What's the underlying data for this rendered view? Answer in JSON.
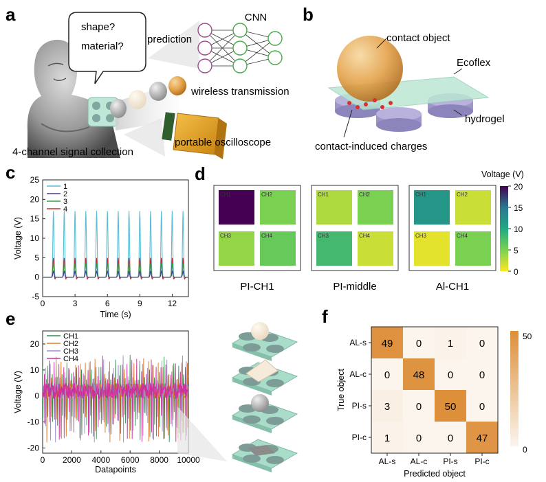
{
  "panels": {
    "a": {
      "label": "a",
      "bubble": [
        "shape?",
        "material?"
      ],
      "prediction": "prediction",
      "cnn": "CNN",
      "wireless": "wireless transmission",
      "collection": "4-channel signal collection",
      "oscilloscope": "portable oscilloscope"
    },
    "b": {
      "label": "b",
      "contact_object": "contact object",
      "ecoflex": "Ecoflex",
      "hydrogel": "hydrogel",
      "charges": "contact-induced charges"
    },
    "c": {
      "label": "c"
    },
    "d": {
      "label": "d",
      "colorbar_title": "Voltage (V)",
      "colorbar_ticks": [
        "20",
        "15",
        "10",
        "5",
        "0"
      ],
      "channel_labels": [
        "CH1",
        "CH2",
        "CH3",
        "CH4"
      ],
      "groups": [
        {
          "name": "PI-CH1",
          "voltages": [
            20,
            5,
            4,
            6
          ]
        },
        {
          "name": "PI-middle",
          "voltages": [
            3,
            5,
            8,
            2
          ]
        },
        {
          "name": "Al-CH1",
          "voltages": [
            12,
            2,
            1,
            5
          ]
        }
      ],
      "colors": {
        "high": "#3b0f70",
        "mid": "#21908d",
        "low": "#fde725"
      }
    },
    "e": {
      "label": "e"
    },
    "f": {
      "label": "f"
    }
  },
  "chart_data": [
    {
      "panel": "c",
      "type": "line",
      "xlabel": "Time (s)",
      "ylabel": "Voltage (V)",
      "xlim": [
        0,
        13.5
      ],
      "ylim": [
        -5,
        25
      ],
      "xticks": [
        0,
        3,
        6,
        9,
        12
      ],
      "yticks": [
        -5,
        0,
        5,
        10,
        15,
        20,
        25
      ],
      "peak_times": [
        1.0,
        2.0,
        3.0,
        4.0,
        5.0,
        6.0,
        7.0,
        8.0,
        9.0,
        10.0,
        11.0,
        12.0,
        13.0
      ],
      "series": [
        {
          "name": "1",
          "color": "#5bbcd6",
          "peak": 17
        },
        {
          "name": "2",
          "color": "#3f3f9a",
          "peak": 1.5
        },
        {
          "name": "3",
          "color": "#2e9e3e",
          "peak": 3.5
        },
        {
          "name": "4",
          "color": "#cc2a2a",
          "peak": 5
        }
      ]
    },
    {
      "panel": "e",
      "type": "line",
      "xlabel": "Datapoints",
      "ylabel": "Voltage (V)",
      "xlim": [
        0,
        10000
      ],
      "ylim": [
        -22,
        25
      ],
      "xticks": [
        0,
        2000,
        4000,
        6000,
        8000,
        10000
      ],
      "yticks": [
        -20,
        -10,
        0,
        10,
        20
      ],
      "series": [
        {
          "name": "CH1",
          "color": "#2f8f4f"
        },
        {
          "name": "CH2",
          "color": "#e0782a"
        },
        {
          "name": "CH3",
          "color": "#9a8fc8"
        },
        {
          "name": "CH4",
          "color": "#d02f9a"
        }
      ]
    },
    {
      "panel": "f",
      "type": "heatmap",
      "xlabel": "Predicted object",
      "ylabel": "True object",
      "categories": [
        "AL-s",
        "AL-c",
        "PI-s",
        "PI-c"
      ],
      "matrix": [
        [
          49,
          0,
          1,
          0
        ],
        [
          0,
          48,
          0,
          0
        ],
        [
          3,
          0,
          50,
          0
        ],
        [
          1,
          0,
          0,
          47
        ]
      ],
      "colorbar_ticks": [
        "50",
        "0"
      ],
      "colors": {
        "low": "#fcf5ee",
        "high": "#dd8f3a"
      }
    }
  ]
}
